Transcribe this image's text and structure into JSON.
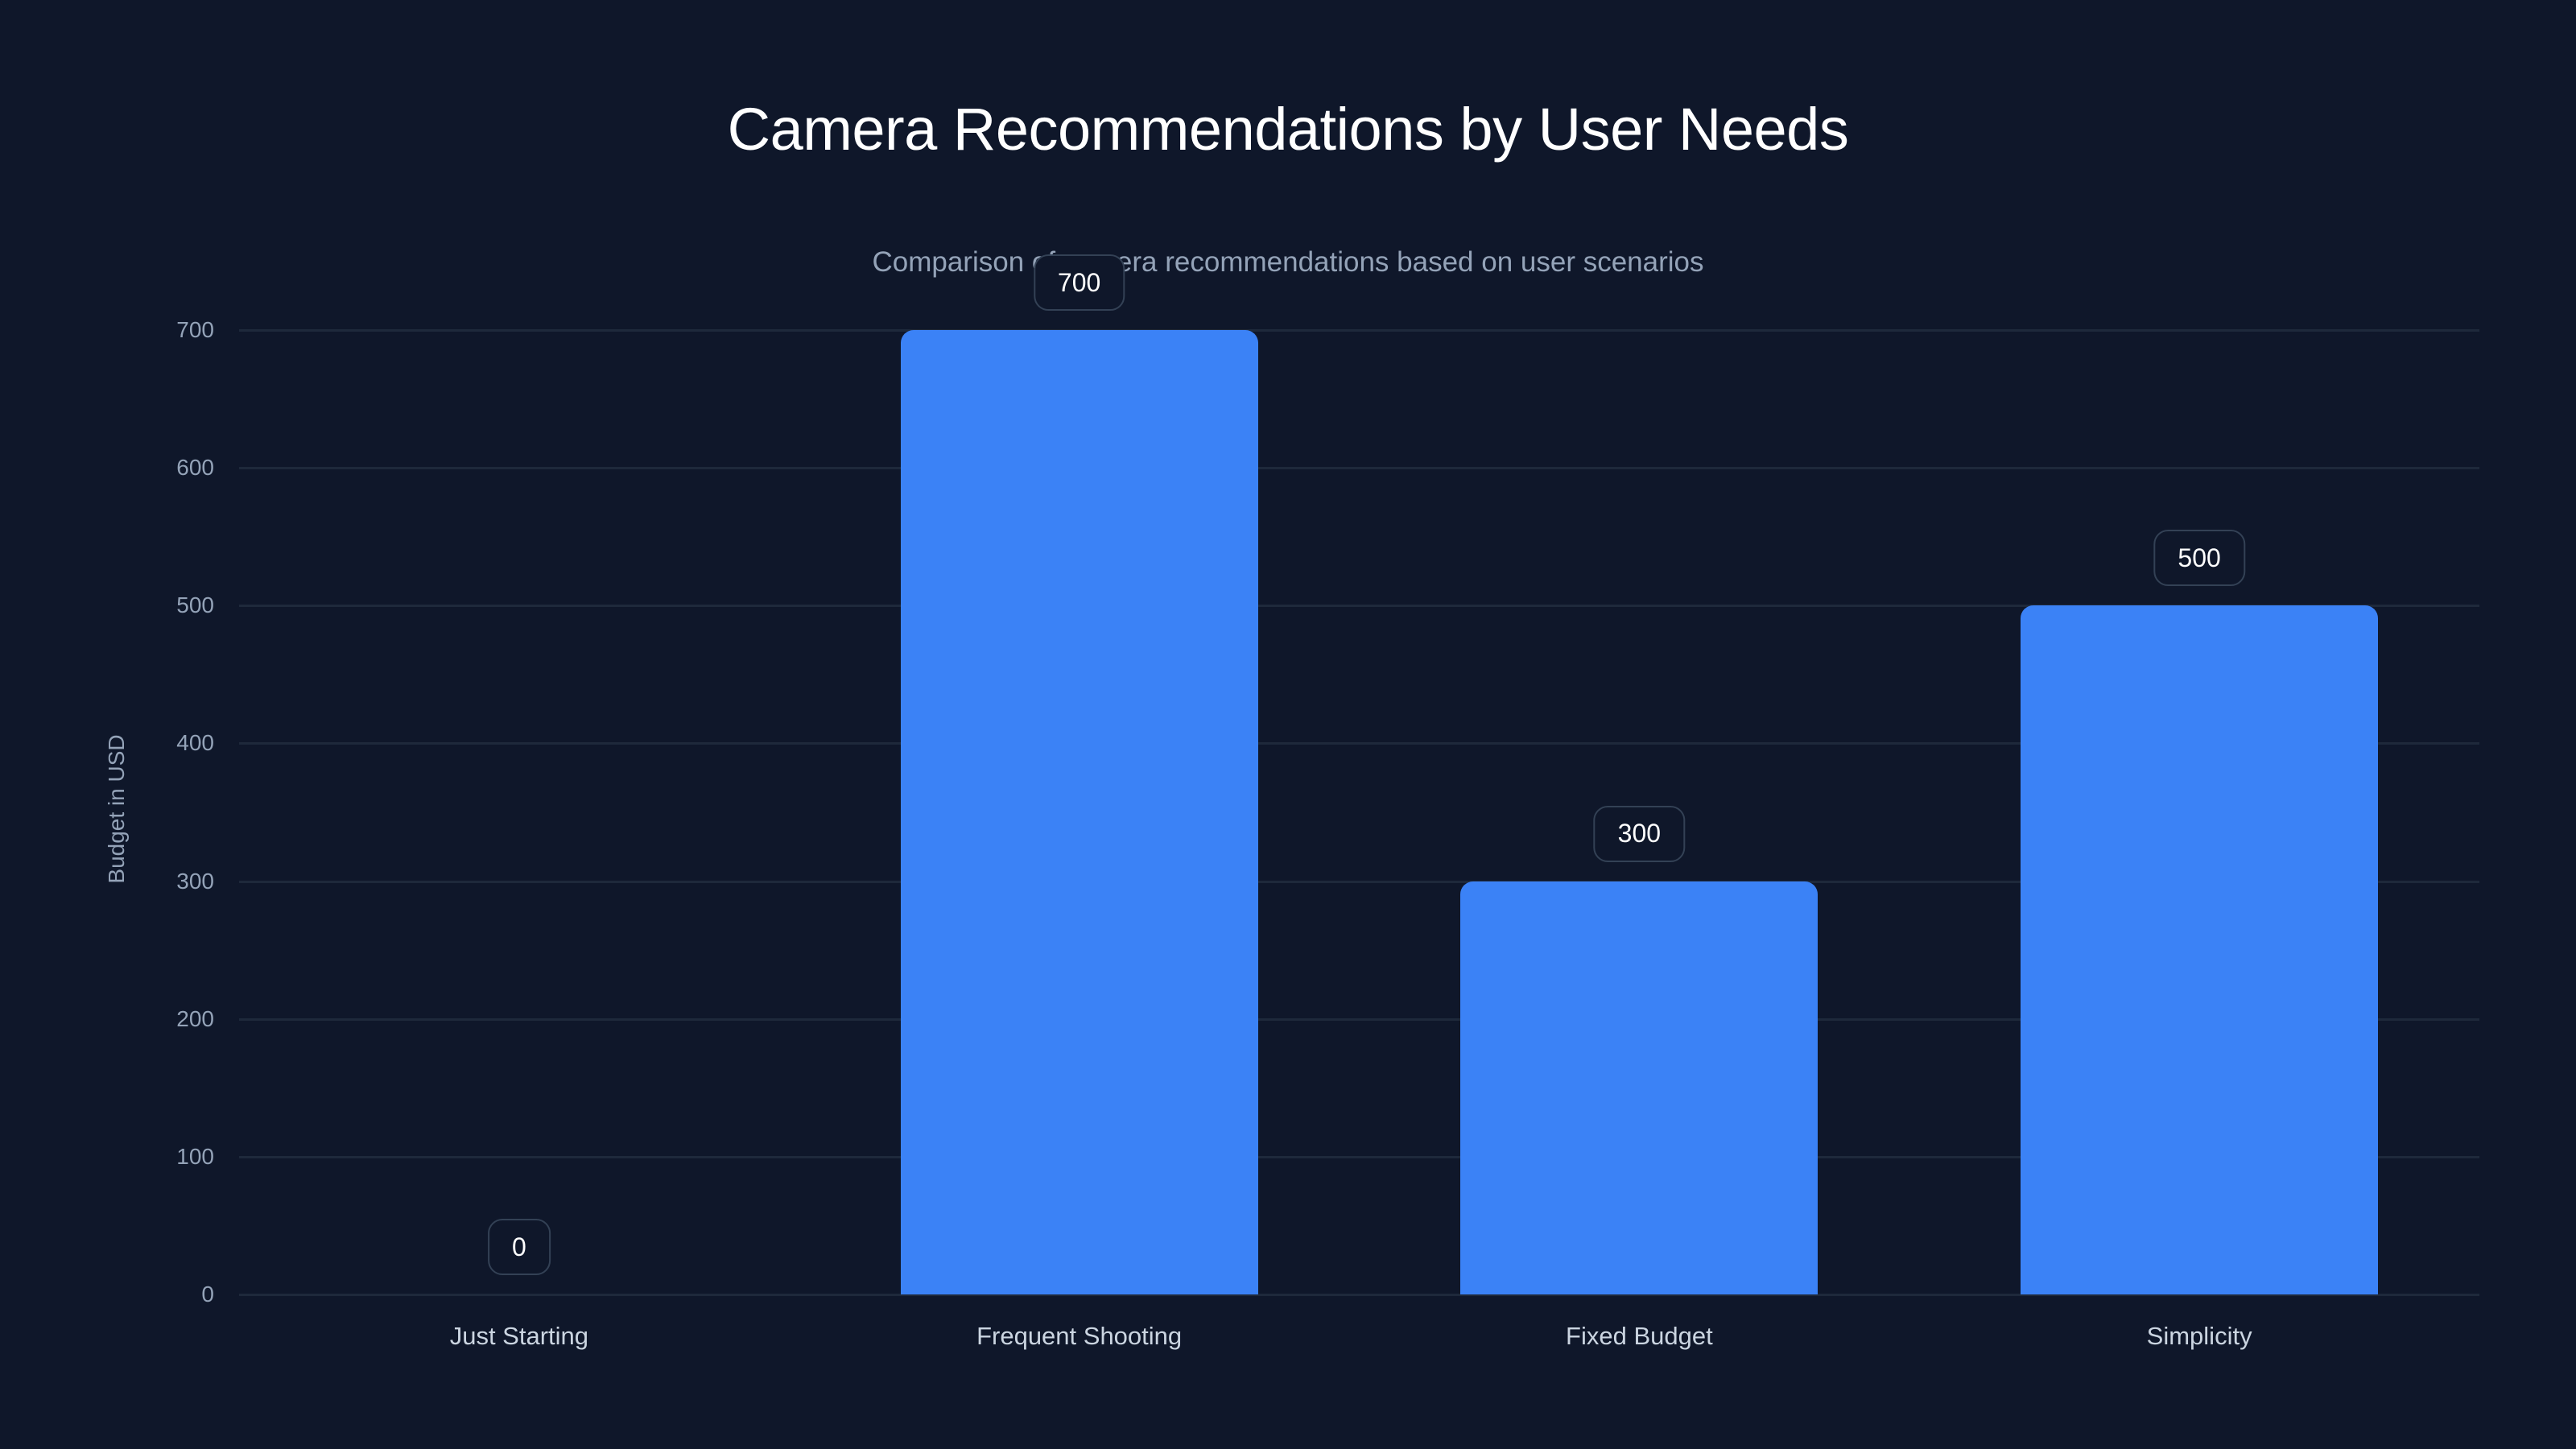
{
  "title": "Camera Recommendations by User Needs",
  "subtitle": "Comparison of camera recommendations based on user scenarios",
  "colors": {
    "background": "#0f172a",
    "bar": "#3b82f6",
    "gridline": "#1e293b",
    "label_border": "#334155",
    "axis_text": "#94a3b8",
    "category_text": "#cbd5e1"
  },
  "axis": {
    "ylabel": "Budget in USD",
    "yticks": [
      "0",
      "100",
      "200",
      "300",
      "400",
      "500",
      "600",
      "700"
    ]
  },
  "chart_data": {
    "type": "bar",
    "title": "Camera Recommendations by User Needs",
    "subtitle": "Comparison of camera recommendations based on user scenarios",
    "categories": [
      "Just Starting",
      "Frequent Shooting",
      "Fixed Budget",
      "Simplicity"
    ],
    "values": [
      0,
      700,
      300,
      500
    ],
    "value_labels": [
      "0",
      "700",
      "300",
      "500"
    ],
    "xlabel": "",
    "ylabel": "Budget in USD",
    "ylim": [
      0,
      700
    ],
    "yticks": [
      0,
      100,
      200,
      300,
      400,
      500,
      600,
      700
    ],
    "grid": "horizontal",
    "legend": "none"
  }
}
